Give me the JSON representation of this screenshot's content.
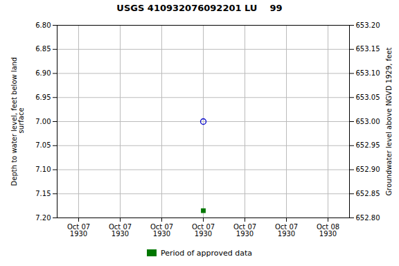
{
  "chart_data": {
    "type": "scatter",
    "title": "USGS 410932076092201 LU    99",
    "ylabel": "Depth to water level, feet below land\n surface",
    "y2label": "Groundwater level above NGVD 1929, feet",
    "categories": [
      "Oct 07\n1930",
      "Oct 07\n1930",
      "Oct 07\n1930",
      "Oct 07\n1930",
      "Oct 07\n1930",
      "Oct 07\n1930",
      "Oct 08\n1930"
    ],
    "series": [
      {
        "color": "#0000cc",
        "marker": "circle",
        "values": [
          null,
          null,
          null,
          7.0,
          null,
          null,
          null
        ]
      },
      {
        "name": "Period of approved data",
        "color": "#007700",
        "marker": "square",
        "values": [
          null,
          null,
          null,
          7.185,
          null,
          null,
          null
        ]
      }
    ],
    "ylim": [
      7.2,
      6.8
    ],
    "yticks": [
      {
        "value": 6.8,
        "label": "6.80"
      },
      {
        "value": 6.85,
        "label": "6.85"
      },
      {
        "value": 6.9,
        "label": "6.90"
      },
      {
        "value": 6.95,
        "label": "6.95"
      },
      {
        "value": 7.0,
        "label": "7.00"
      },
      {
        "value": 7.05,
        "label": "7.05"
      },
      {
        "value": 7.1,
        "label": "7.10"
      },
      {
        "value": 7.15,
        "label": "7.15"
      },
      {
        "value": 7.2,
        "label": "7.20"
      }
    ],
    "y2lim": [
      652.8,
      653.2
    ],
    "y2ticks": [
      {
        "value": 653.2,
        "label": "653.20"
      },
      {
        "value": 653.15,
        "label": "653.15"
      },
      {
        "value": 653.1,
        "label": "653.10"
      },
      {
        "value": 653.05,
        "label": "653.05"
      },
      {
        "value": 653.0,
        "label": "653.00"
      },
      {
        "value": 652.95,
        "label": "652.95"
      },
      {
        "value": 652.9,
        "label": "652.90"
      },
      {
        "value": 652.85,
        "label": "652.85"
      },
      {
        "value": 652.8,
        "label": "652.80"
      }
    ],
    "grid": true,
    "legend": "bottom"
  }
}
